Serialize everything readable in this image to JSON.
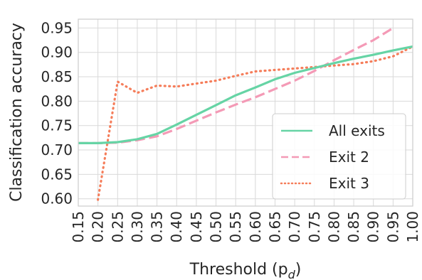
{
  "chart_data": {
    "type": "line",
    "xlabel": "Threshold (p",
    "xlabel_subscript": "d",
    "xlabel_close": ")",
    "ylabel": "Classification accuracy",
    "xlim": [
      0.15,
      1.0
    ],
    "ylim": [
      0.585,
      0.968
    ],
    "grid": true,
    "legend_position": "lower-right",
    "x_ticks": [
      "0.15",
      "0.20",
      "0.25",
      "0.30",
      "0.35",
      "0.40",
      "0.45",
      "0.50",
      "0.55",
      "0.60",
      "0.65",
      "0.70",
      "0.75",
      "0.80",
      "0.85",
      "0.90",
      "0.95",
      "1.00"
    ],
    "y_ticks": [
      "0.60",
      "0.65",
      "0.70",
      "0.75",
      "0.80",
      "0.85",
      "0.90",
      "0.95"
    ],
    "series": [
      {
        "name": "All exits",
        "color": "#66d4a5",
        "style": "solid",
        "x": [
          0.15,
          0.2,
          0.25,
          0.3,
          0.35,
          0.4,
          0.45,
          0.5,
          0.55,
          0.6,
          0.65,
          0.7,
          0.75,
          0.8,
          0.85,
          0.9,
          0.95,
          1.0
        ],
        "y": [
          0.714,
          0.714,
          0.716,
          0.722,
          0.733,
          0.752,
          0.772,
          0.792,
          0.812,
          0.828,
          0.845,
          0.858,
          0.868,
          0.878,
          0.887,
          0.895,
          0.904,
          0.912
        ]
      },
      {
        "name": "Exit 2",
        "color": "#f49ab6",
        "style": "dashed",
        "x": [
          0.15,
          0.2,
          0.25,
          0.3,
          0.35,
          0.4,
          0.45,
          0.5,
          0.55,
          0.6,
          0.65,
          0.7,
          0.75,
          0.8,
          0.85,
          0.9,
          0.95
        ],
        "y": [
          0.714,
          0.714,
          0.715,
          0.72,
          0.728,
          0.743,
          0.76,
          0.777,
          0.793,
          0.808,
          0.825,
          0.842,
          0.862,
          0.884,
          0.905,
          0.925,
          0.95
        ]
      },
      {
        "name": "Exit 3",
        "color": "#f57d5a",
        "style": "dotted",
        "x": [
          0.2,
          0.25,
          0.3,
          0.35,
          0.4,
          0.45,
          0.5,
          0.55,
          0.6,
          0.65,
          0.7,
          0.75,
          0.8,
          0.85,
          0.9,
          0.95,
          1.0
        ],
        "y": [
          0.598,
          0.84,
          0.817,
          0.832,
          0.83,
          0.836,
          0.842,
          0.852,
          0.861,
          0.864,
          0.867,
          0.87,
          0.873,
          0.876,
          0.882,
          0.892,
          0.912
        ]
      }
    ]
  }
}
